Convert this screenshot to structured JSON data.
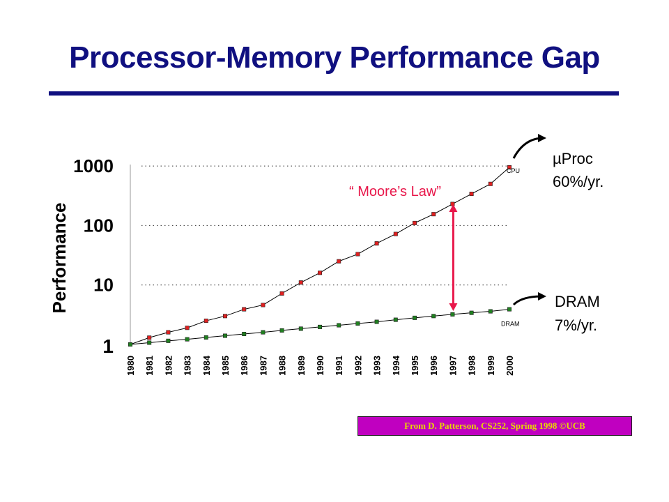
{
  "title": "Processor-Memory Performance Gap",
  "source_note": "From D. Patterson, CS252, Spring 1998 ©UCB",
  "colors": {
    "title": "#101080",
    "cpu": "#e02020",
    "dram": "#208020",
    "arrow": "#e8174a",
    "moores_law": "#e8174a",
    "source_bg": "#c000c0",
    "source_text": "#e8d800"
  },
  "chart_data": {
    "type": "line",
    "title": "",
    "xlabel": "",
    "ylabel": "Performance",
    "y_scale": "log",
    "ylim": [
      1,
      1000
    ],
    "y_ticks": [
      "1",
      "10",
      "100",
      "1000"
    ],
    "grid": "dotted horizontal at 10, 100, 1000",
    "x": [
      "1980",
      "1981",
      "1982",
      "1983",
      "1984",
      "1985",
      "1986",
      "1987",
      "1988",
      "1989",
      "1990",
      "1991",
      "1992",
      "1993",
      "1994",
      "1995",
      "1996",
      "1997",
      "1998",
      "1999",
      "2000"
    ],
    "series": [
      {
        "name": "CPU",
        "values": [
          1,
          1.3,
          1.6,
          1.9,
          2.5,
          3,
          3.9,
          4.6,
          7.2,
          11,
          16,
          25,
          33,
          50,
          72,
          110,
          155,
          230,
          340,
          500,
          950
        ]
      },
      {
        "name": "DRAM",
        "values": [
          1,
          1.07,
          1.15,
          1.22,
          1.31,
          1.4,
          1.5,
          1.6,
          1.72,
          1.84,
          1.97,
          2.1,
          2.25,
          2.4,
          2.6,
          2.8,
          3.0,
          3.2,
          3.4,
          3.6,
          3.9
        ]
      }
    ],
    "annotations": {
      "moores_law": "“ Moore’s Law”",
      "cpu_line1": "µProc",
      "cpu_line2": "60%/yr.",
      "dram_line1": "DRAM",
      "dram_line2": "7%/yr."
    }
  }
}
